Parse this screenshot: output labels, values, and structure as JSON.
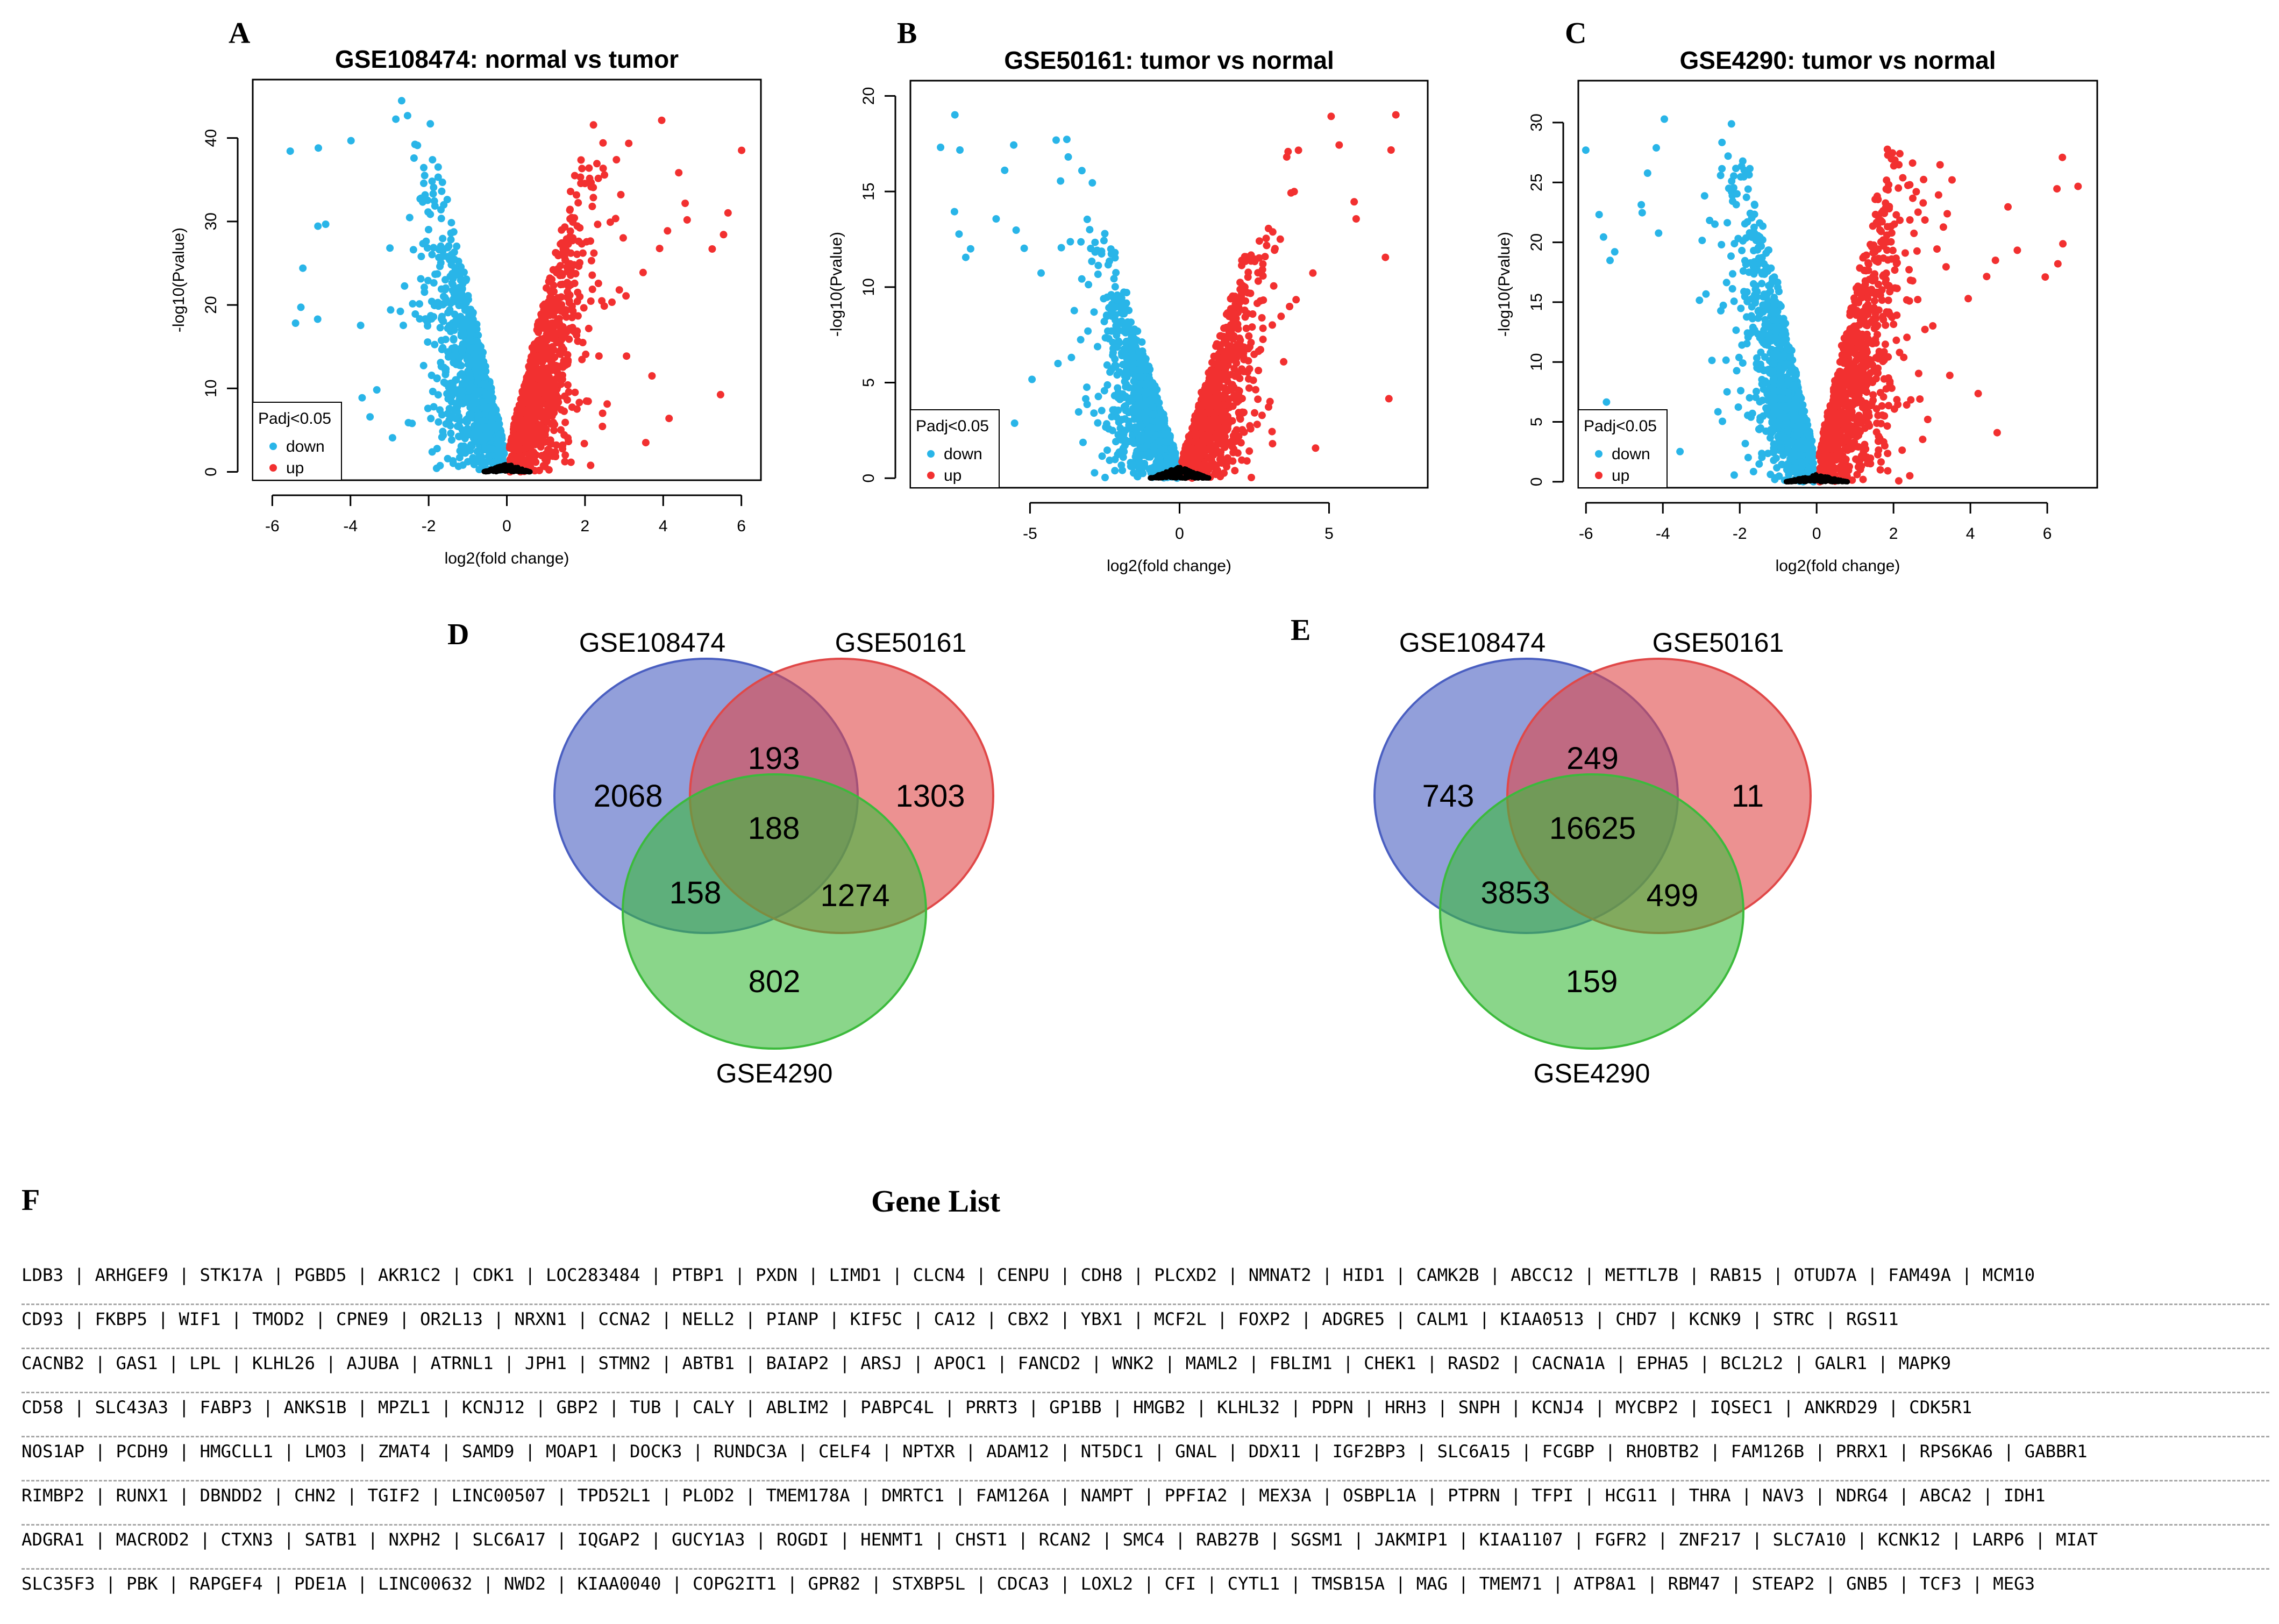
{
  "panels": {
    "a": "A",
    "b": "B",
    "c": "C",
    "d": "D",
    "e": "E",
    "f": "F"
  },
  "volcano": [
    {
      "title": "GSE108474: normal vs tumor",
      "xlabel": "log2(fold change)",
      "ylabel": "-log10(Pvalue)",
      "xlim": [
        -6.5,
        6.5
      ],
      "ylim": [
        -1,
        47
      ],
      "xticks": [
        "-6",
        "-4",
        "-2",
        "0",
        "2",
        "4",
        "6"
      ],
      "yticks": [
        "0",
        "10",
        "20",
        "30",
        "40"
      ],
      "legend_title": "Padj<0.05",
      "legend_down": "down",
      "legend_up": "up"
    },
    {
      "title": "GSE50161: tumor vs normal",
      "xlabel": "log2(fold change)",
      "ylabel": "-log10(Pvalue)",
      "xlim": [
        -9,
        8.3
      ],
      "ylim": [
        -0.5,
        20.8
      ],
      "xticks": [
        "-5",
        "0",
        "5"
      ],
      "yticks": [
        "0",
        "5",
        "10",
        "15",
        "20"
      ],
      "legend_title": "Padj<0.05",
      "legend_down": "down",
      "legend_up": "up"
    },
    {
      "title": "GSE4290: tumor vs normal",
      "xlabel": "log2(fold change)",
      "ylabel": "-log10(Pvalue)",
      "xlim": [
        -6.2,
        7.3
      ],
      "ylim": [
        -0.5,
        33.5
      ],
      "xticks": [
        "-6",
        "-4",
        "-2",
        "0",
        "2",
        "4",
        "6"
      ],
      "yticks": [
        "0",
        "5",
        "10",
        "15",
        "20",
        "25",
        "30"
      ],
      "legend_title": "Padj<0.05",
      "legend_down": "down",
      "legend_up": "up"
    }
  ],
  "chart_data": [
    {
      "type": "scatter",
      "title": "GSE108474: normal vs tumor",
      "xlabel": "log2(fold change)",
      "ylabel": "-log10(Pvalue)",
      "xlim": [
        -6.5,
        6.5
      ],
      "ylim": [
        -1,
        47
      ],
      "series": [
        {
          "name": "down",
          "color": "#29b5e8",
          "shape": {
            "x_min": -6,
            "x_at_zero": 0,
            "slope": 19,
            "y_max": 45.5
          }
        },
        {
          "name": "up",
          "color": "#f23030",
          "shape": {
            "x_max": 6,
            "x_at_zero": 0,
            "slope": 19,
            "y_max": 44.5
          }
        },
        {
          "name": "not significant",
          "color": "#000000",
          "shape": {
            "x_range": [
              -0.6,
              0.6
            ],
            "y_max": 1
          }
        }
      ],
      "legend": {
        "title": "Padj<0.05",
        "position": "bottom-left",
        "entries": [
          "down",
          "up"
        ]
      }
    },
    {
      "type": "scatter",
      "title": "GSE50161: tumor vs normal",
      "xlabel": "log2(fold change)",
      "ylabel": "-log10(Pvalue)",
      "xlim": [
        -9,
        8.3
      ],
      "ylim": [
        -0.5,
        20.8
      ],
      "series": [
        {
          "name": "down",
          "color": "#29b5e8",
          "shape": {
            "x_min": -8,
            "x_at_zero": 0,
            "slope": 5,
            "y_max": 20
          }
        },
        {
          "name": "up",
          "color": "#f23030",
          "shape": {
            "x_max": 7.7,
            "x_at_zero": 0,
            "slope": 5,
            "y_max": 20
          }
        },
        {
          "name": "not significant",
          "color": "#000000",
          "shape": {
            "x_range": [
              -1,
              1
            ],
            "y_max": 0.6
          }
        }
      ],
      "legend": {
        "title": "Padj<0.05",
        "position": "bottom-left",
        "entries": [
          "down",
          "up"
        ]
      }
    },
    {
      "type": "scatter",
      "title": "GSE4290: tumor vs normal",
      "xlabel": "log2(fold change)",
      "ylabel": "-log10(Pvalue)",
      "xlim": [
        -6.2,
        7.3
      ],
      "ylim": [
        -0.5,
        33.5
      ],
      "series": [
        {
          "name": "down",
          "color": "#29b5e8",
          "shape": {
            "x_min": -6,
            "x_at_zero": 0,
            "slope": 14,
            "y_max": 32
          }
        },
        {
          "name": "up",
          "color": "#f23030",
          "shape": {
            "x_max": 6.8,
            "x_at_zero": 0,
            "slope": 14,
            "y_max": 28.5
          }
        },
        {
          "name": "not significant",
          "color": "#000000",
          "shape": {
            "x_range": [
              -0.8,
              0.8
            ],
            "y_max": 0.6
          }
        }
      ],
      "legend": {
        "title": "Padj<0.05",
        "position": "bottom-left",
        "entries": [
          "down",
          "up"
        ]
      }
    }
  ],
  "venn": [
    {
      "labels": {
        "a": "GSE108474",
        "b": "GSE50161",
        "c": "GSE4290"
      },
      "regions": {
        "a_only": "2068",
        "ab": "193",
        "b_only": "1303",
        "abc": "188",
        "ac": "158",
        "bc": "1274",
        "c_only": "802"
      }
    },
    {
      "labels": {
        "a": "GSE108474",
        "b": "GSE50161",
        "c": "GSE4290"
      },
      "regions": {
        "a_only": "743",
        "ab": "249",
        "b_only": "11",
        "abc": "16625",
        "ac": "3853",
        "bc": "499",
        "c_only": "159"
      }
    }
  ],
  "venn_colors": {
    "a": "#4a5fc1",
    "b": "#e04848",
    "c": "#3cba3c"
  },
  "gene_list": {
    "title": "Gene List",
    "rows": [
      "LDB3 | ARHGEF9 | STK17A | PGBD5 | AKR1C2 | CDK1 | LOC283484 | PTBP1 | PXDN | LIMD1 | CLCN4 | CENPU | CDH8 | PLCXD2 | NMNAT2 | HID1 | CAMK2B | ABCC12 | METTL7B | RAB15 | OTUD7A | FAM49A | MCM10",
      "CD93 | FKBP5 | WIF1 | TMOD2 | CPNE9 | OR2L13 | NRXN1 | CCNA2 | NELL2 | PIANP | KIF5C | CA12 | CBX2 | YBX1 | MCF2L | FOXP2 | ADGRE5 | CALM1 | KIAA0513 | CHD7 | KCNK9 | STRC | RGS11",
      "CACNB2 | GAS1 | LPL | KLHL26 | AJUBA | ATRNL1 | JPH1 | STMN2 | ABTB1 | BAIAP2 | ARSJ | APOC1 | FANCD2 | WNK2 | MAML2 | FBLIM1 | CHEK1 | RASD2 | CACNA1A | EPHA5 | BCL2L2 | GALR1 | MAPK9",
      "CD58 | SLC43A3 | FABP3 | ANKS1B | MPZL1 | KCNJ12 | GBP2 | TUB | CALY | ABLIM2 | PABPC4L | PRRT3 | GP1BB | HMGB2 | KLHL32 | PDPN | HRH3 | SNPH | KCNJ4 | MYCBP2 | IQSEC1 | ANKRD29 | CDK5R1",
      "NOS1AP | PCDH9 | HMGCLL1 | LMO3 | ZMAT4 | SAMD9 | MOAP1 | DOCK3 | RUNDC3A | CELF4 | NPTXR | ADAM12 | NT5DC1 | GNAL | DDX11 | IGF2BP3 | SLC6A15 | FCGBP | RHOBTB2 | FAM126B | PRRX1 | RPS6KA6 | GABBR1",
      "RIMBP2 | RUNX1 | DBNDD2 | CHN2 | TGIF2 | LINC00507 | TPD52L1 | PLOD2 | TMEM178A | DMRTC1 | FAM126A | NAMPT | PPFIA2 | MEX3A | OSBPL1A | PTPRN | TFPI | HCG11 | THRA | NAV3 | NDRG4 | ABCA2 | IDH1",
      "ADGRA1 | MACROD2 | CTXN3 | SATB1 | NXPH2 | SLC6A17 | IQGAP2 | GUCY1A3 | ROGDI | HENMT1 | CHST1 | RCAN2 | SMC4 | RAB27B | SGSM1 | JAKMIP1 | KIAA1107 | FGFR2 | ZNF217 | SLC7A10 | KCNK12 | LARP6 | MIAT",
      "SLC35F3 | PBK | RAPGEF4 | PDE1A | LINC00632 | NWD2 | KIAA0040 | COPG2IT1 | GPR82 | STXBP5L | CDCA3 | LOXL2 | CFI | CYTL1 | TMSB15A | MAG | TMEM71 | ATP8A1 | RBM47 | STEAP2 | GNB5 | TCF3 | MEG3"
    ]
  }
}
